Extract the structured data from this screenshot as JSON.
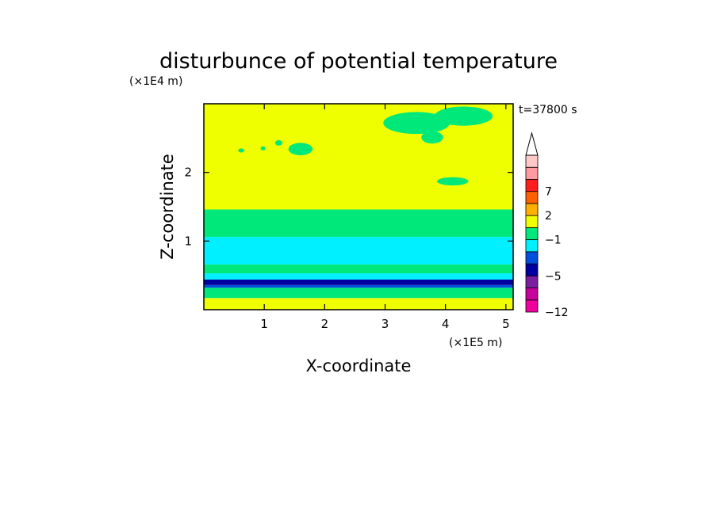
{
  "chart_data": {
    "type": "heatmap",
    "title": "disturbunce of potential temperature",
    "xlabel": "X-coordinate",
    "ylabel": "Z-coordinate",
    "x_unit": "(×1E5 m)",
    "y_unit": "(×1E4 m)",
    "time_label": "t=37800 s",
    "xlim": [
      0,
      5.12
    ],
    "ylim": [
      0,
      3.0
    ],
    "xticks": [
      "1",
      "2",
      "3",
      "4",
      "5"
    ],
    "yticks": [
      "1",
      "2"
    ],
    "colorbar": {
      "labels": [
        "7",
        "2",
        "-1",
        "-5",
        "-12"
      ],
      "colors": [
        "#f0009c",
        "#c8009c",
        "#7a1fa0",
        "#0000a0",
        "#0050dc",
        "#00f0ff",
        "#00e87a",
        "#f0ff00",
        "#ffb000",
        "#ff6000",
        "#ff1e1e",
        "#ff9aa0",
        "#ffc8c8"
      ],
      "extend": "max"
    },
    "bands": [
      {
        "z0": 0.0,
        "z1": 0.17,
        "color": "#f0ff00"
      },
      {
        "z0": 0.17,
        "z1": 0.32,
        "color": "#00e87a"
      },
      {
        "z0": 0.32,
        "z1": 0.36,
        "color": "#0050dc"
      },
      {
        "z0": 0.36,
        "z1": 0.44,
        "color": "#0000a0"
      },
      {
        "z0": 0.44,
        "z1": 0.53,
        "color": "#00f0ff"
      },
      {
        "z0": 0.53,
        "z1": 0.66,
        "color": "#00e87a"
      },
      {
        "z0": 0.66,
        "z1": 1.06,
        "color": "#00f0ff"
      },
      {
        "z0": 1.06,
        "z1": 1.46,
        "color": "#00e87a"
      },
      {
        "z0": 1.46,
        "z1": 3.0,
        "color": "#f0ff00"
      }
    ],
    "patches": [
      {
        "x": 3.52,
        "z": 2.72,
        "rx": 0.55,
        "rz": 0.16,
        "color": "#00e87a"
      },
      {
        "x": 4.3,
        "z": 2.82,
        "rx": 0.48,
        "rz": 0.14,
        "color": "#00e87a"
      },
      {
        "x": 3.78,
        "z": 2.51,
        "rx": 0.18,
        "rz": 0.09,
        "color": "#00e87a"
      },
      {
        "x": 1.6,
        "z": 2.34,
        "rx": 0.2,
        "rz": 0.09,
        "color": "#00e87a"
      },
      {
        "x": 4.12,
        "z": 1.87,
        "rx": 0.26,
        "rz": 0.06,
        "color": "#00e87a"
      },
      {
        "x": 0.62,
        "z": 2.32,
        "rx": 0.05,
        "rz": 0.03,
        "color": "#00e87a"
      },
      {
        "x": 0.98,
        "z": 2.35,
        "rx": 0.04,
        "rz": 0.03,
        "color": "#00e87a"
      },
      {
        "x": 1.24,
        "z": 2.43,
        "rx": 0.06,
        "rz": 0.04,
        "color": "#00e87a"
      }
    ]
  }
}
